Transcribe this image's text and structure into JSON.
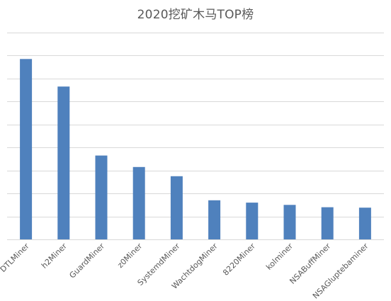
{
  "chart_data": {
    "type": "bar",
    "title": "2020挖矿木马TOP榜",
    "xlabel": "",
    "ylabel": "",
    "categories": [
      "DTLMiner",
      "h2Miner",
      "GuardMiner",
      "z0Miner",
      "SystemdMiner",
      "WachtdogMiner",
      "8220Miner",
      "kolminer",
      "NSABuffMiner",
      "NSAGluptebaminer"
    ],
    "values": [
      78.5,
      66.5,
      36.5,
      31.5,
      27.5,
      17.0,
      16.0,
      15.0,
      14.0,
      13.8
    ],
    "ylim": [
      0,
      90
    ],
    "y_ticks_shown": false,
    "grid": true,
    "legend": "none",
    "colors": {
      "bar": "#4f81bd",
      "grid": "#d9d9d9",
      "text": "#595959"
    }
  }
}
